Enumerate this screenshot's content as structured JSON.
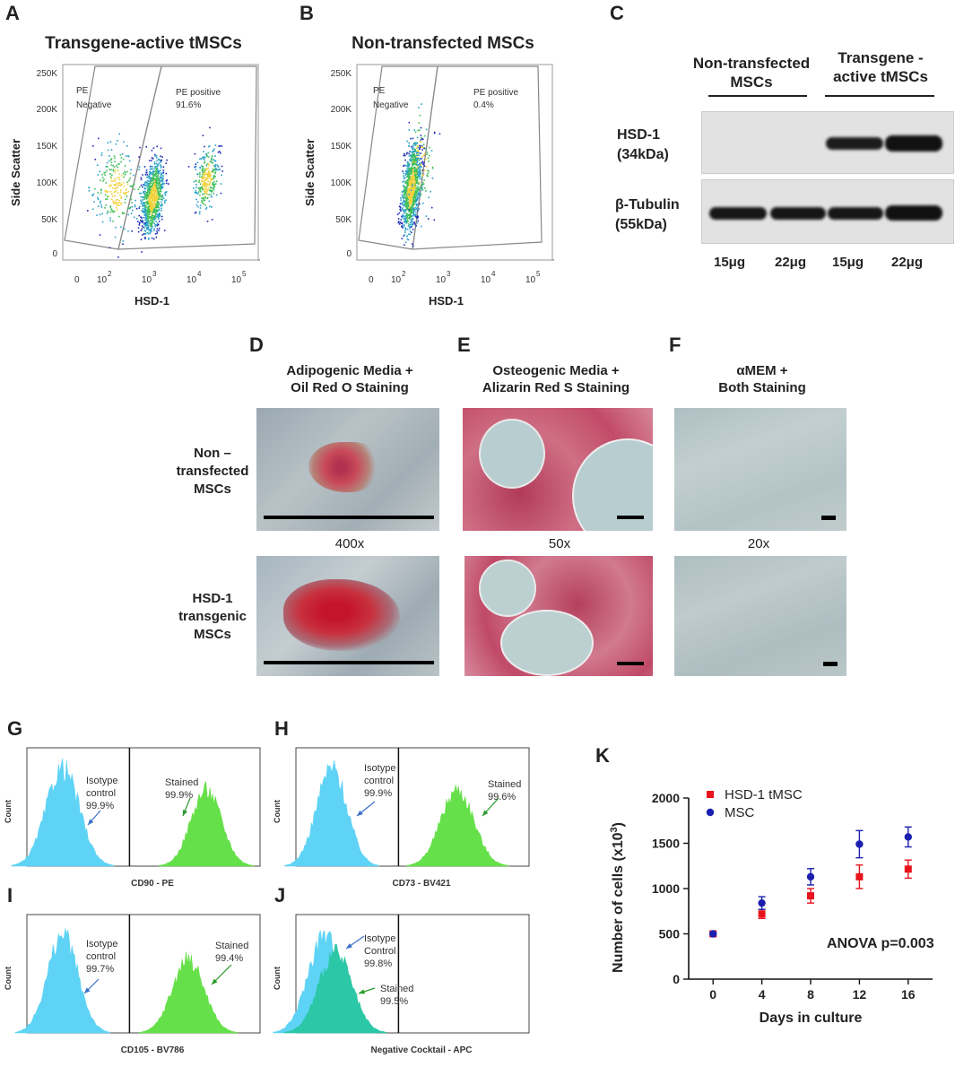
{
  "panels": {
    "A": {
      "letter": "A",
      "title": "Transgene-active tMSCs",
      "xlabel": "HSD-1",
      "ylabel": "Side Scatter",
      "neg_line1": "PE",
      "neg_line2": "Negative",
      "pos_label": "PE positive",
      "pos_value": "91.6%",
      "yticks": [
        "250K",
        "200K",
        "150K",
        "100K",
        "50K",
        "0"
      ],
      "xticks": [
        "0",
        "10",
        "10",
        "10",
        "10"
      ],
      "xexp": [
        "",
        "2",
        "3",
        "4",
        "5"
      ]
    },
    "B": {
      "letter": "B",
      "title": "Non-transfected MSCs",
      "xlabel": "HSD-1",
      "ylabel": "Side Scatter",
      "neg_line1": "PE",
      "neg_line2": "Negative",
      "pos_label": "PE positive",
      "pos_value": "0.4%",
      "yticks": [
        "250K",
        "200K",
        "150K",
        "100K",
        "50K",
        "0"
      ],
      "xticks": [
        "0",
        "10",
        "10",
        "10",
        "10"
      ],
      "xexp": [
        "",
        "2",
        "3",
        "4",
        "5"
      ]
    },
    "C": {
      "letter": "C",
      "group1_line1": "Non-transfected",
      "group1_line2": "MSCs",
      "group2_line1": "Transgene -",
      "group2_line2": "active tMSCs",
      "band1_line1": "HSD-1",
      "band1_line2": "(34kDa)",
      "band2_line1": "β-Tubulin",
      "band2_line2": "(55kDa)",
      "lanes": [
        "15μg",
        "22μg",
        "15μg",
        "22μg"
      ]
    },
    "D": {
      "letter": "D",
      "title_line1": "Adipogenic Media +",
      "title_line2": "Oil Red O Staining",
      "mag": "400x"
    },
    "E": {
      "letter": "E",
      "title_line1": "Osteogenic Media +",
      "title_line2": "Alizarin Red S Staining",
      "mag": "50x"
    },
    "F": {
      "letter": "F",
      "title_line1": "αMEM +",
      "title_line2": "Both Staining",
      "mag": "20x"
    },
    "rows": {
      "row1_line1": "Non –",
      "row1_line2": "transfected",
      "row1_line3": "MSCs",
      "row2_line1": "HSD-1",
      "row2_line2": "transgenic",
      "row2_line3": "MSCs"
    },
    "G": {
      "letter": "G",
      "xlabel": "CD90 - PE",
      "ylabel": "Count",
      "iso_line1": "Isotype",
      "iso_line2": "control",
      "iso_value": "99.9%",
      "st_label": "Stained",
      "st_value": "99.9%"
    },
    "H": {
      "letter": "H",
      "xlabel": "CD73 - BV421",
      "ylabel": "Count",
      "iso_line1": "Isotype",
      "iso_line2": "control",
      "iso_value": "99.9%",
      "st_label": "Stained",
      "st_value": "99.6%"
    },
    "I": {
      "letter": "I",
      "xlabel": "CD105 - BV786",
      "ylabel": "Count",
      "iso_line1": "Isotype",
      "iso_line2": "control",
      "iso_value": "99.7%",
      "st_label": "Stained",
      "st_value": "99.4%"
    },
    "J": {
      "letter": "J",
      "xlabel": "Negative Cocktail - APC",
      "ylabel": "Count",
      "iso_line1": "Isotype",
      "iso_line2": "Control",
      "iso_value": "99.8%",
      "st_label": "Stained",
      "st_value": "99.5%"
    },
    "K": {
      "letter": "K",
      "annotation": "ANOVA p=0.003"
    }
  },
  "colors": {
    "red": "#e8141c",
    "blue": "#1b1fb0",
    "cyan": "#5fd3f5",
    "green": "#66e04a",
    "teal": "#2bc7a6"
  },
  "chart_data": {
    "type": "scatter",
    "title": "",
    "xlabel": "Days in culture",
    "ylabel": "Number of cells (x10",
    "ylabel_sup": "3",
    "ylabel_end": ")",
    "x": [
      0,
      4,
      8,
      12,
      16
    ],
    "xticks": [
      "0",
      "4",
      "8",
      "12",
      "16"
    ],
    "yticks": [
      "0",
      "500",
      "1000",
      "1500",
      "2000"
    ],
    "xlim": [
      -2,
      18
    ],
    "ylim": [
      0,
      2000
    ],
    "legend": "top-left",
    "series": [
      {
        "name": "HSD-1 tMSC",
        "marker": "square",
        "values": [
          500,
          720,
          920,
          1130,
          1215
        ],
        "err": [
          0,
          50,
          80,
          130,
          100
        ]
      },
      {
        "name": "MSC",
        "marker": "circle",
        "values": [
          500,
          840,
          1130,
          1490,
          1570
        ],
        "err": [
          0,
          70,
          90,
          150,
          110
        ]
      }
    ]
  }
}
